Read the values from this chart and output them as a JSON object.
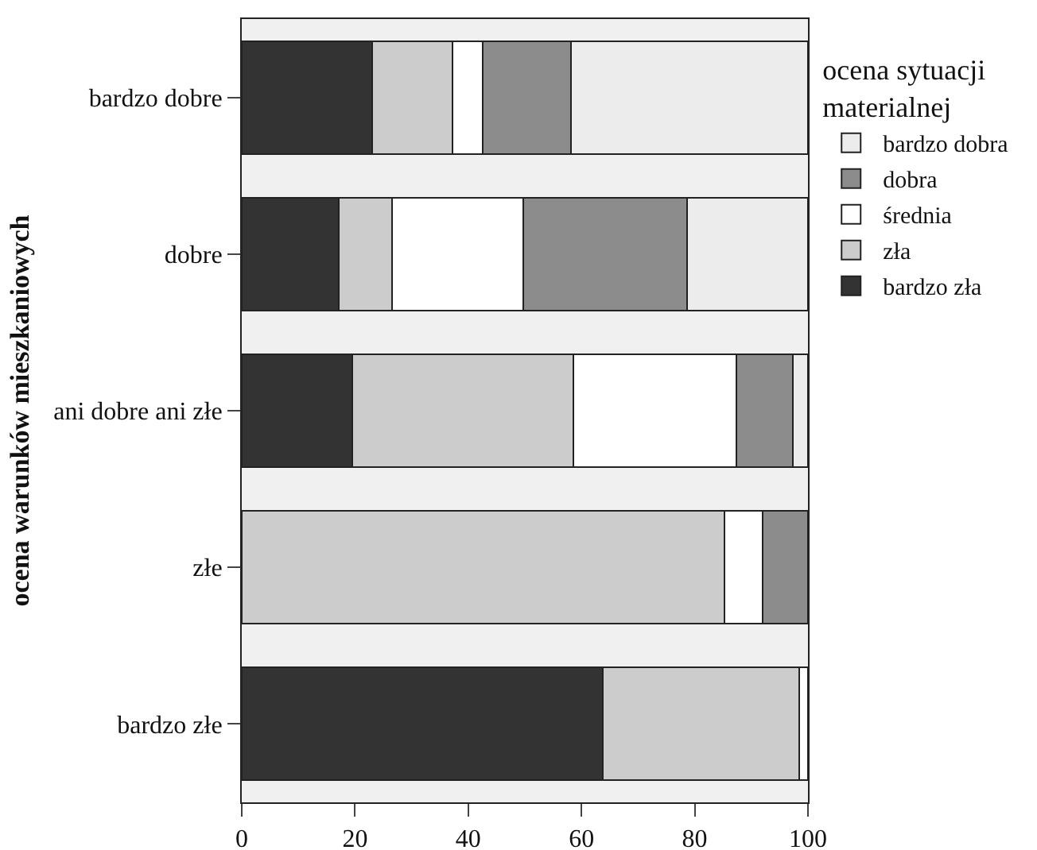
{
  "chart_data": {
    "type": "bar",
    "orientation": "horizontal",
    "stacked": true,
    "ylabel": "ocena warunków mieszkaniowych",
    "legend_title": "ocena sytuacji materialnej",
    "categories": [
      "bardzo dobre",
      "dobre",
      "ani dobre ani złe",
      "złe",
      "bardzo złe"
    ],
    "series": [
      {
        "name": "bardzo zła",
        "color": "#333333",
        "values": [
          23.0,
          17.2,
          19.5,
          0,
          63.7
        ]
      },
      {
        "name": "zła",
        "color": "#cccccc",
        "values": [
          14.2,
          9.4,
          39.0,
          85.2,
          34.7
        ]
      },
      {
        "name": "średnia",
        "color": "#ffffff",
        "values": [
          5.4,
          23.1,
          28.9,
          6.8,
          1.6
        ]
      },
      {
        "name": "dobra",
        "color": "#8c8c8c",
        "values": [
          15.6,
          29.0,
          9.9,
          8.0,
          0
        ]
      },
      {
        "name": "bardzo dobra",
        "color": "#ececec",
        "values": [
          41.8,
          21.3,
          2.7,
          0,
          0
        ]
      }
    ],
    "xlim": [
      0,
      100
    ],
    "xticks": [
      0,
      20,
      40,
      60,
      80,
      100
    ],
    "grid": false,
    "legend": "top right"
  }
}
